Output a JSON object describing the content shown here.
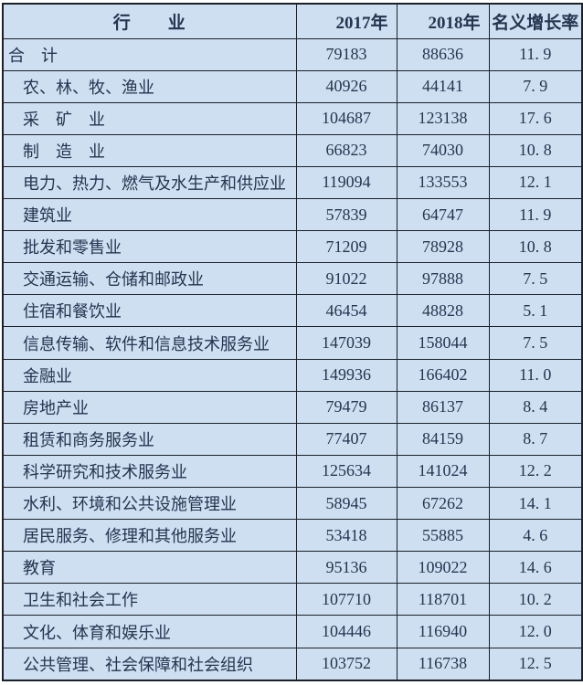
{
  "table": {
    "columns": [
      {
        "key": "industry",
        "label": "行　　业"
      },
      {
        "key": "y2017",
        "label": "2017年"
      },
      {
        "key": "y2018",
        "label": "2018年"
      },
      {
        "key": "growth",
        "label": "名义增长率"
      }
    ],
    "rows": [
      {
        "industry": "合　计",
        "indent": false,
        "y2017": "79183",
        "y2018": "88636",
        "growth": "11. 9"
      },
      {
        "industry": "农、林、牧、渔业",
        "indent": true,
        "y2017": "40926",
        "y2018": "44141",
        "growth": "7. 9"
      },
      {
        "industry": "采　矿　业",
        "indent": true,
        "y2017": "104687",
        "y2018": "123138",
        "growth": "17. 6"
      },
      {
        "industry": "制　造　业",
        "indent": true,
        "y2017": "66823",
        "y2018": "74030",
        "growth": "10. 8"
      },
      {
        "industry": "电力、热力、燃气及水生产和供应业",
        "indent": true,
        "y2017": "119094",
        "y2018": "133553",
        "growth": "12. 1"
      },
      {
        "industry": "建筑业",
        "indent": true,
        "y2017": "57839",
        "y2018": "64747",
        "growth": "11. 9"
      },
      {
        "industry": "批发和零售业",
        "indent": true,
        "y2017": "71209",
        "y2018": "78928",
        "growth": "10. 8"
      },
      {
        "industry": "交通运输、仓储和邮政业",
        "indent": true,
        "y2017": "91022",
        "y2018": "97888",
        "growth": "7. 5"
      },
      {
        "industry": "住宿和餐饮业",
        "indent": true,
        "y2017": "46454",
        "y2018": "48828",
        "growth": "5. 1"
      },
      {
        "industry": "信息传输、软件和信息技术服务业",
        "indent": true,
        "y2017": "147039",
        "y2018": "158044",
        "growth": "7. 5"
      },
      {
        "industry": "金融业",
        "indent": true,
        "y2017": "149936",
        "y2018": "166402",
        "growth": "11. 0"
      },
      {
        "industry": "房地产业",
        "indent": true,
        "y2017": "79479",
        "y2018": "86137",
        "growth": "8. 4"
      },
      {
        "industry": "租赁和商务服务业",
        "indent": true,
        "y2017": "77407",
        "y2018": "84159",
        "growth": "8. 7"
      },
      {
        "industry": "科学研究和技术服务业",
        "indent": true,
        "y2017": "125634",
        "y2018": "141024",
        "growth": "12. 2"
      },
      {
        "industry": "水利、环境和公共设施管理业",
        "indent": true,
        "y2017": "58945",
        "y2018": "67262",
        "growth": "14. 1"
      },
      {
        "industry": "居民服务、修理和其他服务业",
        "indent": true,
        "y2017": "53418",
        "y2018": "55885",
        "growth": "4. 6"
      },
      {
        "industry": "教育",
        "indent": true,
        "y2017": "95136",
        "y2018": "109022",
        "growth": "14. 6"
      },
      {
        "industry": "卫生和社会工作",
        "indent": true,
        "y2017": "107710",
        "y2018": "118701",
        "growth": "10. 2"
      },
      {
        "industry": "文化、体育和娱乐业",
        "indent": true,
        "y2017": "104446",
        "y2018": "116940",
        "growth": "12. 0"
      },
      {
        "industry": "公共管理、社会保障和社会组织",
        "indent": true,
        "y2017": "103752",
        "y2018": "116738",
        "growth": "12. 5"
      }
    ]
  },
  "colors": {
    "cell_background": "#cddff0",
    "text": "#243550",
    "border": "#1c2028",
    "page_background": "#ffffff"
  }
}
